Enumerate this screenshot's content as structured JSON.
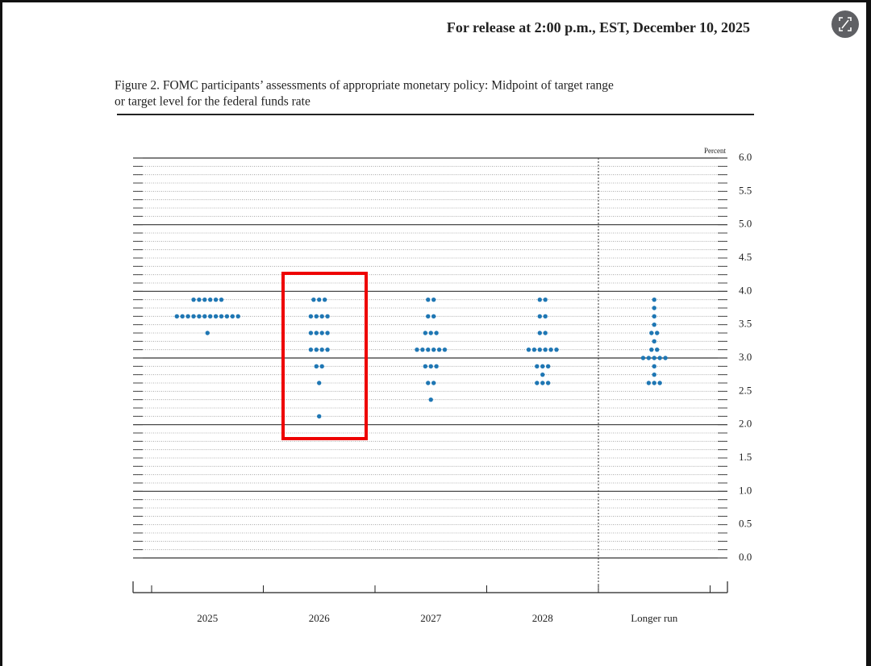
{
  "header": "For release at 2:00 p.m., EST, December 10, 2025",
  "chart_data": {
    "type": "dot-plot",
    "title": [
      "Figure 2. FOMC participants’ assessments of appropriate monetary policy: Midpoint of target range",
      "or target level for the federal funds rate"
    ],
    "y_label": "Percent",
    "categories": [
      "2025",
      "2026",
      "2027",
      "2028",
      "Longer run"
    ],
    "dots": [
      [
        {
          "value": 3.875,
          "count": 6
        },
        {
          "value": 3.625,
          "count": 12
        },
        {
          "value": 3.375,
          "count": 1
        }
      ],
      [
        {
          "value": 3.875,
          "count": 3
        },
        {
          "value": 3.625,
          "count": 4
        },
        {
          "value": 3.375,
          "count": 4
        },
        {
          "value": 3.125,
          "count": 4
        },
        {
          "value": 2.875,
          "count": 2
        },
        {
          "value": 2.625,
          "count": 1
        },
        {
          "value": 2.125,
          "count": 1
        }
      ],
      [
        {
          "value": 3.875,
          "count": 2
        },
        {
          "value": 3.625,
          "count": 2
        },
        {
          "value": 3.375,
          "count": 3
        },
        {
          "value": 3.125,
          "count": 6
        },
        {
          "value": 2.875,
          "count": 3
        },
        {
          "value": 2.625,
          "count": 2
        },
        {
          "value": 2.375,
          "count": 1
        }
      ],
      [
        {
          "value": 3.875,
          "count": 2
        },
        {
          "value": 3.625,
          "count": 2
        },
        {
          "value": 3.375,
          "count": 2
        },
        {
          "value": 3.125,
          "count": 6
        },
        {
          "value": 2.875,
          "count": 3
        },
        {
          "value": 2.75,
          "count": 1
        },
        {
          "value": 2.625,
          "count": 3
        }
      ],
      [
        {
          "value": 3.875,
          "count": 1
        },
        {
          "value": 3.75,
          "count": 1
        },
        {
          "value": 3.625,
          "count": 1
        },
        {
          "value": 3.5,
          "count": 1
        },
        {
          "value": 3.375,
          "count": 2
        },
        {
          "value": 3.25,
          "count": 1
        },
        {
          "value": 3.125,
          "count": 2
        },
        {
          "value": 3.0,
          "count": 5
        },
        {
          "value": 2.875,
          "count": 1
        },
        {
          "value": 2.75,
          "count": 1
        },
        {
          "value": 2.625,
          "count": 3
        }
      ]
    ],
    "color": "#1f77b4",
    "ylim": [
      0,
      6
    ],
    "yticks": [
      {
        "value": 0,
        "label": "0.0"
      },
      0.5,
      {
        "value": 1,
        "label": "1.0"
      },
      1.5,
      {
        "value": 2,
        "label": "2.0"
      },
      2.5,
      {
        "value": 3,
        "label": "3.0"
      },
      3.5,
      {
        "value": 4,
        "label": "4.0"
      },
      4.5,
      {
        "value": 5,
        "label": "5.0"
      },
      5.5,
      {
        "value": 6,
        "label": "6.0"
      }
    ],
    "grid": true
  }
}
